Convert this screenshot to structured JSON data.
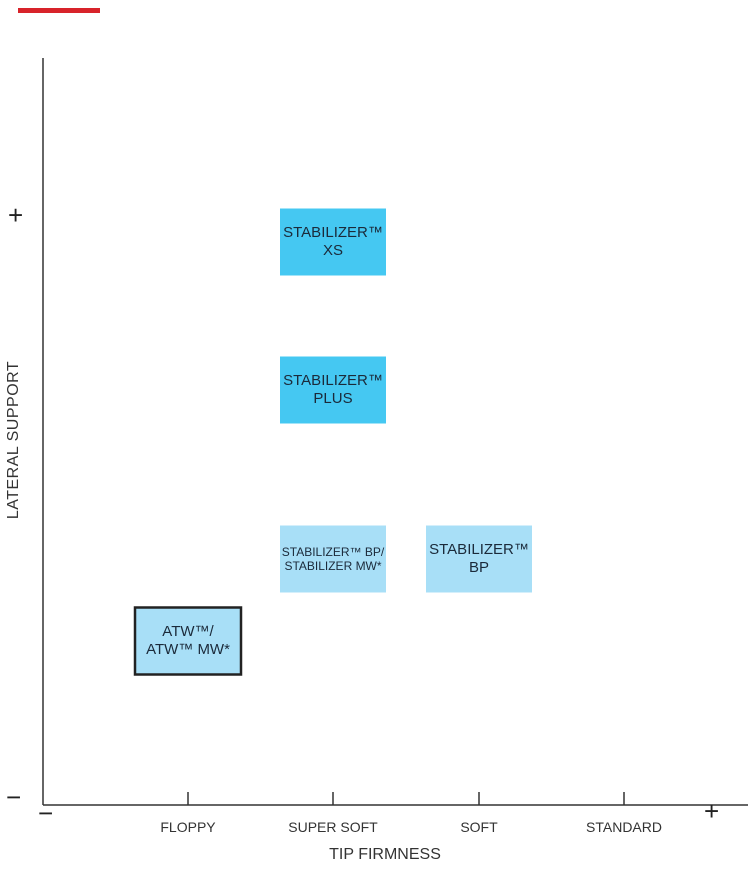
{
  "chart_data": {
    "type": "scatter",
    "xlabel": "TIP FIRMNESS",
    "ylabel": "LATERAL SUPPORT",
    "x_categories": [
      "FLOPPY",
      "SUPER SOFT",
      "SOFT",
      "STANDARD"
    ],
    "x_min_label": "−",
    "x_max_label": "+",
    "y_min_label": "−",
    "y_max_label": "+",
    "grid": false,
    "points": [
      {
        "label_lines": [
          "STABILIZER™",
          "XS"
        ],
        "x": "SUPER SOFT",
        "y_level": 4,
        "color": "#45c8f2",
        "border": false
      },
      {
        "label_lines": [
          "STABILIZER™",
          "PLUS"
        ],
        "x": "SUPER SOFT",
        "y_level": 3,
        "color": "#45c8f2",
        "border": false
      },
      {
        "label_lines": [
          "STABILIZER™ BP/",
          "STABILIZER MW*"
        ],
        "x": "SUPER SOFT",
        "y_level": 2,
        "color": "#a8dff7",
        "border": false
      },
      {
        "label_lines": [
          "STABILIZER™",
          "BP"
        ],
        "x": "SOFT",
        "y_level": 2,
        "color": "#a8dff7",
        "border": false
      },
      {
        "label_lines": [
          "ATW™/",
          "ATW™ MW*"
        ],
        "x": "FLOPPY",
        "y_level": 1,
        "color": "#a8dff7",
        "border": true
      }
    ]
  }
}
